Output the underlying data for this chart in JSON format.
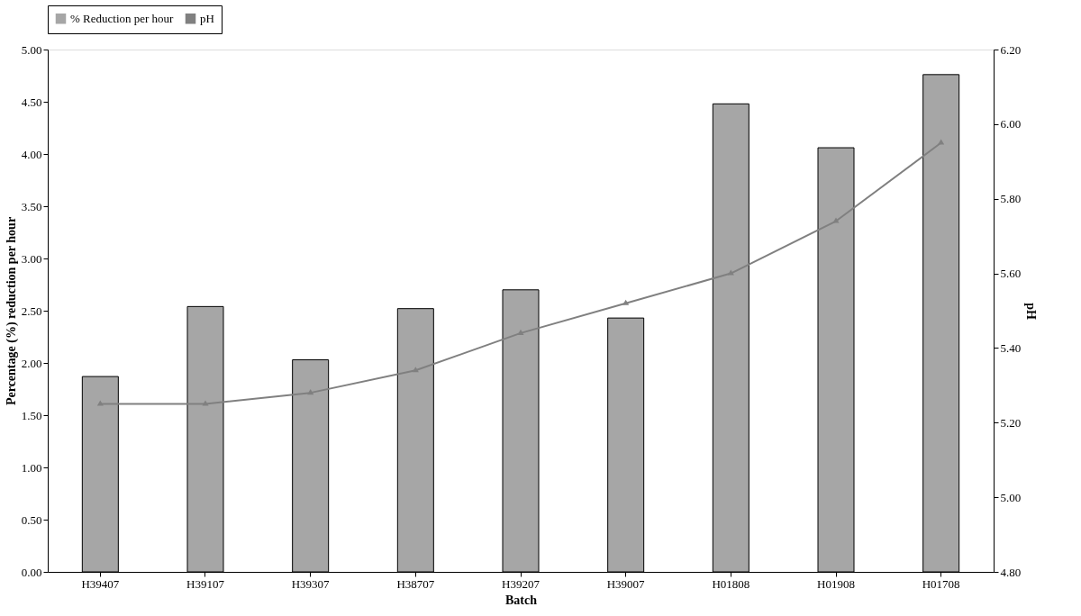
{
  "chart_data": {
    "type": "bar",
    "xlabel": "Batch",
    "ylabel": "Percentage (%) reduction per hour",
    "y2label": "pH",
    "categories": [
      "H39407",
      "H39107",
      "H39307",
      "H38707",
      "H39207",
      "H39007",
      "H01808",
      "H01908",
      "H01708"
    ],
    "series": [
      {
        "name": "% Reduction per hour",
        "color": "#a6a6a6",
        "values": [
          1.87,
          2.54,
          2.03,
          2.52,
          2.7,
          2.43,
          4.48,
          4.06,
          4.76
        ]
      },
      {
        "name": "pH",
        "type": "line",
        "axis": "y2",
        "color": "#808080",
        "marker": "triangle",
        "values": [
          5.25,
          5.25,
          5.28,
          5.34,
          5.44,
          5.52,
          5.6,
          5.74,
          5.95
        ]
      }
    ],
    "ylim": [
      0,
      5
    ],
    "yticks": [
      {
        "value": 0,
        "label": "0.00"
      },
      {
        "value": 0.5,
        "label": "0.50"
      },
      {
        "value": 1,
        "label": "1.00"
      },
      {
        "value": 1.5,
        "label": "1.50"
      },
      {
        "value": 2,
        "label": "2.00"
      },
      {
        "value": 2.5,
        "label": "2.50"
      },
      {
        "value": 3,
        "label": "3.00"
      },
      {
        "value": 3.5,
        "label": "3.50"
      },
      {
        "value": 4,
        "label": "4.00"
      },
      {
        "value": 4.5,
        "label": "4.50"
      },
      {
        "value": 5,
        "label": "5.00"
      }
    ],
    "y2lim": [
      4.8,
      6.2
    ],
    "y2ticks": [
      {
        "value": 4.8,
        "label": "4.80"
      },
      {
        "value": 5,
        "label": "5.00"
      },
      {
        "value": 5.2,
        "label": "5.20"
      },
      {
        "value": 5.4,
        "label": "5.40"
      },
      {
        "value": 5.6,
        "label": "5.60"
      },
      {
        "value": 5.8,
        "label": "5.80"
      },
      {
        "value": 6,
        "label": "6.00"
      },
      {
        "value": 6.2,
        "label": "6.20"
      }
    ],
    "legend": "top",
    "grid": false,
    "line_style": "solid"
  }
}
